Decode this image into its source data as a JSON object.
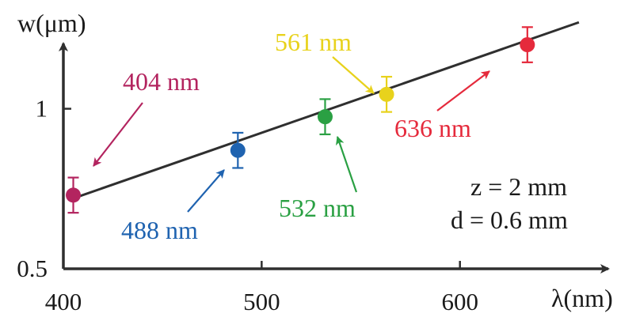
{
  "chart_data": {
    "type": "scatter",
    "title": "",
    "xlabel": "λ(nm)",
    "ylabel": "w(μm)",
    "xlim": [
      400,
      680
    ],
    "ylim": [
      0.5,
      1.32
    ],
    "x_ticks": [
      {
        "value": 400,
        "label": "400"
      },
      {
        "value": 500,
        "label": "500"
      },
      {
        "value": 600,
        "label": "600"
      }
    ],
    "y_ticks": [
      {
        "value": 0.5,
        "label": "0.5"
      },
      {
        "value": 1.0,
        "label": "1"
      }
    ],
    "grid": false,
    "points": [
      {
        "label": "404 nm",
        "x": 405,
        "y": 0.73,
        "err": 0.055,
        "color": "#b3245f"
      },
      {
        "label": "488 nm",
        "x": 488,
        "y": 0.87,
        "err": 0.055,
        "color": "#1f63b0"
      },
      {
        "label": "532 nm",
        "x": 532,
        "y": 0.975,
        "err": 0.055,
        "color": "#2aa043"
      },
      {
        "label": "561 nm",
        "x": 563,
        "y": 1.045,
        "err": 0.055,
        "color": "#e8d21c"
      },
      {
        "label": "636 nm",
        "x": 634,
        "y": 1.2,
        "err": 0.055,
        "color": "#e52a3c"
      }
    ],
    "fit_line": {
      "x": [
        405,
        660
      ],
      "y": [
        0.72,
        1.27
      ],
      "color": "#2f2f2f"
    },
    "annotations": [
      "z = 2 mm",
      "d = 0.6 mm"
    ]
  }
}
